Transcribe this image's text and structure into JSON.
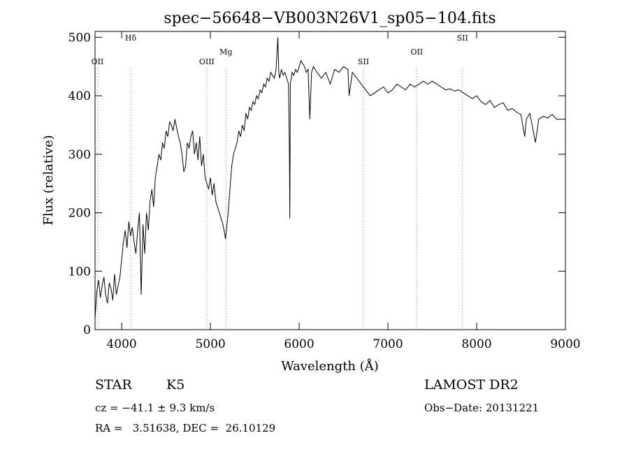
{
  "chart_data": {
    "type": "line",
    "title": "spec−56648−VB003N26V1_sp05−104.fits",
    "xlabel": "Wavelength (Å)",
    "ylabel": "Flux (relative)",
    "xlim": [
      3700,
      9000
    ],
    "ylim": [
      0,
      510
    ],
    "xticks": [
      4000,
      5000,
      6000,
      7000,
      8000,
      9000
    ],
    "yticks": [
      0,
      100,
      200,
      300,
      400,
      500
    ],
    "grid": false,
    "series": [
      {
        "values_x": [
          3700,
          3720,
          3740,
          3760,
          3780,
          3800,
          3820,
          3840,
          3860,
          3880,
          3900,
          3920,
          3940,
          3960,
          3980,
          4000,
          4020,
          4040,
          4060,
          4080,
          4100,
          4120,
          4140,
          4160,
          4180,
          4200,
          4220,
          4240,
          4260,
          4280,
          4300,
          4320,
          4340,
          4360,
          4380,
          4400,
          4420,
          4440,
          4460,
          4480,
          4500,
          4520,
          4540,
          4560,
          4580,
          4600,
          4620,
          4640,
          4660,
          4680,
          4700,
          4720,
          4740,
          4760,
          4780,
          4800,
          4820,
          4840,
          4860,
          4880,
          4900,
          4920,
          4940,
          4960,
          4980,
          5000,
          5020,
          5040,
          5060,
          5080,
          5100,
          5120,
          5140,
          5160,
          5170,
          5180,
          5200,
          5220,
          5240,
          5260,
          5280,
          5300,
          5320,
          5340,
          5360,
          5380,
          5400,
          5420,
          5440,
          5460,
          5480,
          5500,
          5520,
          5540,
          5560,
          5580,
          5600,
          5620,
          5640,
          5660,
          5680,
          5700,
          5720,
          5740,
          5760,
          5770,
          5780,
          5800,
          5820,
          5840,
          5860,
          5880,
          5890,
          5895,
          5900,
          5920,
          5940,
          5960,
          5980,
          6000,
          6020,
          6040,
          6060,
          6080,
          6100,
          6120,
          6140,
          6160,
          6180,
          6200,
          6250,
          6300,
          6350,
          6400,
          6450,
          6500,
          6550,
          6563,
          6600,
          6650,
          6700,
          6750,
          6800,
          6850,
          6900,
          6950,
          7000,
          7050,
          7100,
          7150,
          7200,
          7250,
          7300,
          7350,
          7400,
          7450,
          7500,
          7550,
          7600,
          7650,
          7700,
          7750,
          7800,
          7850,
          7900,
          7950,
          8000,
          8050,
          8100,
          8150,
          8200,
          8250,
          8300,
          8350,
          8400,
          8450,
          8498,
          8542,
          8560,
          8600,
          8662,
          8700,
          8750,
          8800,
          8850,
          8900,
          8950,
          9000
        ],
        "values_y": [
          20,
          65,
          85,
          55,
          75,
          90,
          60,
          45,
          80,
          70,
          50,
          95,
          60,
          75,
          90,
          120,
          150,
          170,
          140,
          185,
          160,
          175,
          150,
          130,
          170,
          200,
          60,
          180,
          130,
          200,
          170,
          220,
          240,
          210,
          260,
          280,
          300,
          290,
          320,
          310,
          340,
          330,
          355,
          350,
          340,
          360,
          345,
          330,
          320,
          300,
          270,
          280,
          320,
          310,
          330,
          340,
          300,
          320,
          290,
          330,
          280,
          300,
          260,
          250,
          240,
          260,
          230,
          250,
          220,
          210,
          200,
          190,
          180,
          165,
          155,
          170,
          200,
          240,
          280,
          300,
          310,
          320,
          340,
          330,
          350,
          340,
          370,
          360,
          380,
          375,
          390,
          385,
          400,
          395,
          410,
          405,
          420,
          415,
          430,
          425,
          440,
          435,
          430,
          445,
          500,
          440,
          430,
          445,
          435,
          440,
          430,
          420,
          300,
          190,
          420,
          440,
          435,
          445,
          440,
          450,
          460,
          455,
          450,
          440,
          445,
          360,
          440,
          450,
          445,
          440,
          430,
          440,
          420,
          445,
          440,
          450,
          445,
          400,
          440,
          430,
          420,
          410,
          400,
          405,
          410,
          415,
          405,
          410,
          420,
          415,
          410,
          420,
          415,
          420,
          425,
          420,
          425,
          420,
          415,
          410,
          412,
          408,
          410,
          405,
          400,
          395,
          400,
          390,
          385,
          392,
          380,
          385,
          388,
          375,
          378,
          372,
          368,
          330,
          360,
          370,
          320,
          360,
          365,
          362,
          368,
          360,
          360,
          360
        ]
      }
    ],
    "line_markers": [
      {
        "label": "OII",
        "x": 3727,
        "color": "#d66"
      },
      {
        "label": "Hδ",
        "x": 4102,
        "color": "#d66"
      },
      {
        "label": "OIII",
        "x": 4959,
        "color": "#d66"
      },
      {
        "label": "Mg",
        "x": 5175,
        "color": "#d66"
      },
      {
        "label": "SII",
        "x": 6724,
        "color": "#d66"
      },
      {
        "label": "OII",
        "x": 7325,
        "color": "#d66"
      },
      {
        "label": "SII",
        "x": 7840,
        "color": "#d66"
      }
    ]
  },
  "info": {
    "class": "STAR",
    "subclass": "K5",
    "survey": "LAMOST DR2",
    "cz": "cz = −41.1 ± 9.3 km/s",
    "obs_date": "Obs−Date: 20131221",
    "radec": "RA =   3.51638, DEC =  26.10129"
  }
}
